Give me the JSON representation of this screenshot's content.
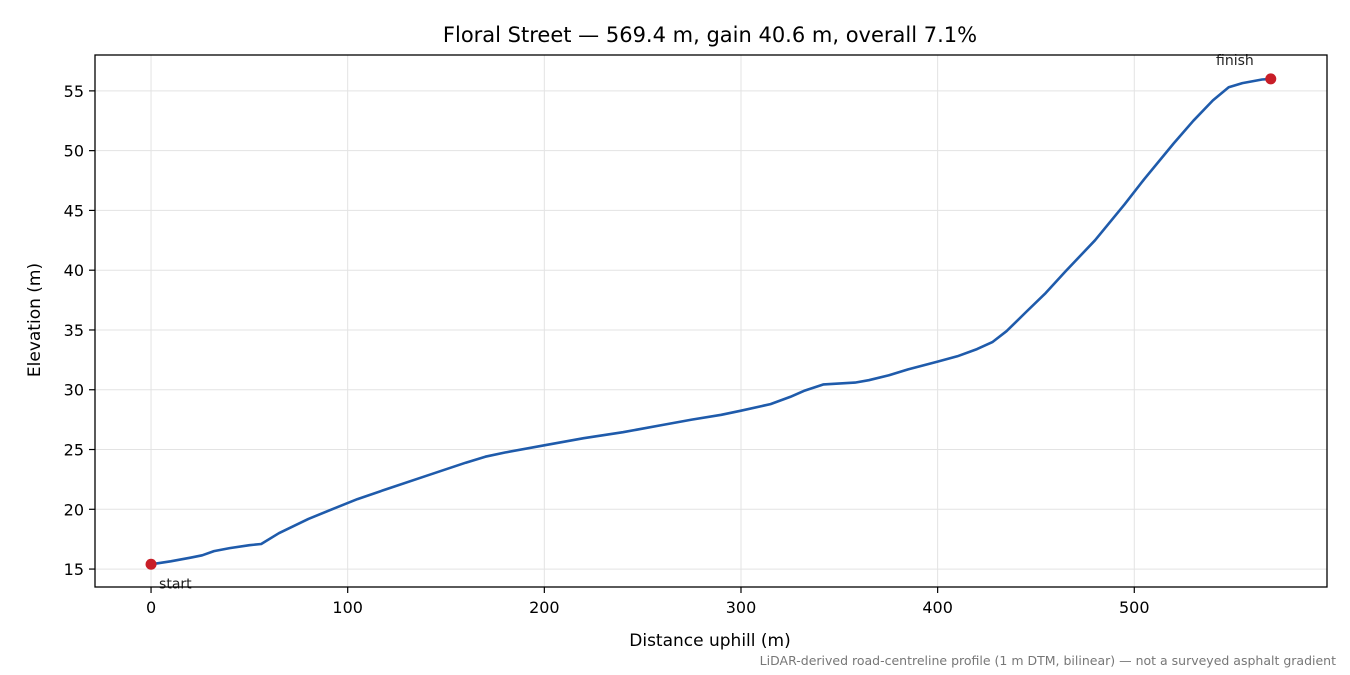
{
  "chart_data": {
    "type": "line",
    "title": "Floral Street — 569.4 m, gain 40.6 m, overall 7.1%",
    "xlabel": "Distance uphill (m)",
    "ylabel": "Elevation (m)",
    "xlim": [
      -28.5,
      598
    ],
    "ylim": [
      13.5,
      58.0
    ],
    "xticks": [
      0,
      100,
      200,
      300,
      400,
      500
    ],
    "yticks": [
      15,
      20,
      25,
      30,
      35,
      40,
      45,
      50,
      55
    ],
    "grid": true,
    "series": [
      {
        "color": "#1f5bab",
        "x": [
          0,
          10,
          20,
          26,
          32,
          40,
          50,
          56,
          65,
          80,
          95,
          105,
          120,
          140,
          160,
          170,
          180,
          200,
          220,
          240,
          260,
          275,
          290,
          300,
          315,
          325,
          332,
          342,
          358,
          365,
          375,
          385,
          400,
          410,
          420,
          428,
          435,
          445,
          455,
          465,
          480,
          495,
          505,
          520,
          530,
          540,
          548,
          555,
          565,
          569.4
        ],
        "y": [
          15.4,
          15.65,
          15.95,
          16.15,
          16.5,
          16.75,
          17.0,
          17.1,
          18.0,
          19.2,
          20.2,
          20.85,
          21.7,
          22.8,
          23.9,
          24.4,
          24.75,
          25.35,
          25.95,
          26.45,
          27.05,
          27.5,
          27.9,
          28.25,
          28.8,
          29.4,
          29.9,
          30.45,
          30.6,
          30.8,
          31.2,
          31.7,
          32.35,
          32.8,
          33.4,
          34.0,
          34.9,
          36.5,
          38.1,
          39.9,
          42.5,
          45.5,
          47.6,
          50.6,
          52.5,
          54.2,
          55.3,
          55.65,
          55.95,
          56.0
        ]
      }
    ],
    "annotations": [
      {
        "text": "start",
        "x": 0,
        "y": 15.4
      },
      {
        "text": "finish",
        "x": 569.4,
        "y": 56.0
      }
    ],
    "marker_color": "#c81e28",
    "footnote": "LiDAR-derived road-centreline profile (1 m DTM, bilinear) — not a surveyed asphalt gradient"
  }
}
